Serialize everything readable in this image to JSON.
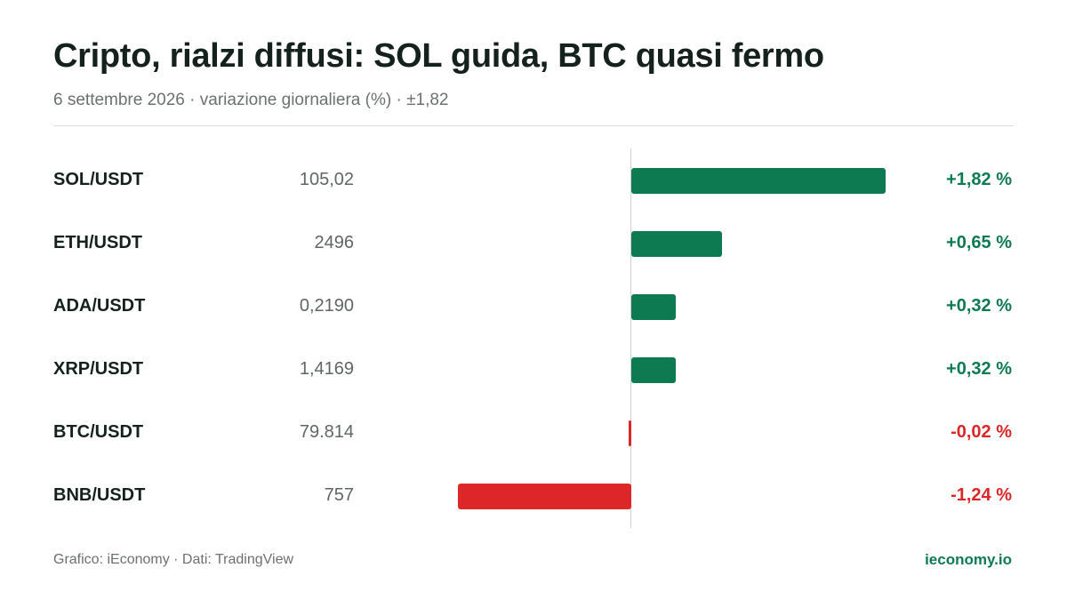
{
  "header": {
    "title": "Cripto, rialzi diffusi: SOL guida, BTC quasi fermo",
    "subtitle": "6 settembre 2026 · variazione giornaliera (%) · ±1,82"
  },
  "footer": {
    "source": "Grafico: iEconomy · Dati: TradingView",
    "brand": "ieconomy.io"
  },
  "colors": {
    "positive": "#0e7a51",
    "negative": "#dc2628"
  },
  "chart_data": {
    "type": "bar",
    "orientation": "horizontal",
    "scale_max_abs": 1.82,
    "categories": [
      "SOL/USDT",
      "ETH/USDT",
      "ADA/USDT",
      "XRP/USDT",
      "BTC/USDT",
      "BNB/USDT"
    ],
    "prices": [
      "105,02",
      "2496",
      "0,2190",
      "1,4169",
      "79.814",
      "757"
    ],
    "values": [
      1.82,
      0.65,
      0.32,
      0.32,
      -0.02,
      -1.24
    ],
    "value_labels": [
      "+1,82 %",
      "+0,65 %",
      "+0,32 %",
      "+0,32 %",
      "-0,02 %",
      "-1,24 %"
    ]
  }
}
